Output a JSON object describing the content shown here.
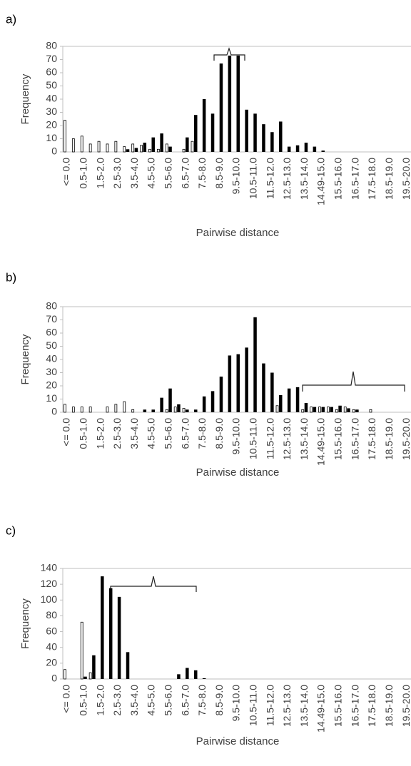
{
  "chart_data": [
    {
      "type": "bar",
      "panel_label": "a)",
      "y_label": "Frequency",
      "x_label": "Pairwise distance",
      "categories": [
        "<= 0.0",
        null,
        "0.5-1.0",
        null,
        "1.5-2.0",
        null,
        "2.5-3.0",
        null,
        "3.5-4.0",
        null,
        "4.5-5.0",
        null,
        "5.5-6.0",
        null,
        "6.5-7.0",
        null,
        "7.5-8.0",
        null,
        "8.5-9.0",
        null,
        "9.5-10.0",
        null,
        "10.5-11.0",
        null,
        "11.5-12.0",
        null,
        "12.5-13.0",
        null,
        "13.5-14.0",
        null,
        "14.49-15.0",
        null,
        "15.5-16.0",
        null,
        "16.5-17.0",
        null,
        "17.5-18.0",
        null,
        "18.5-19.0",
        null,
        "19.5-20.0"
      ],
      "series": [
        {
          "color": "#ffffff",
          "values": [
            24,
            10,
            12,
            6,
            8,
            6,
            8,
            4,
            6,
            5,
            2,
            2,
            6,
            0,
            2,
            8,
            0,
            0,
            0,
            0,
            0,
            0,
            0,
            0,
            0,
            0,
            0,
            0,
            0,
            0,
            0,
            0,
            0,
            0,
            0,
            0,
            0,
            0,
            0,
            0,
            0
          ]
        },
        {
          "color": "#000000",
          "values": [
            0,
            0,
            0,
            0,
            0,
            0,
            0,
            2,
            3,
            7,
            11,
            14,
            4,
            0,
            11,
            28,
            40,
            29,
            67,
            73,
            73,
            32,
            29,
            21,
            15,
            23,
            4,
            5,
            7,
            4,
            1,
            0,
            0,
            0,
            0,
            0,
            0,
            0,
            0,
            0,
            0
          ]
        }
      ],
      "ylim": [
        0,
        80
      ],
      "yticks": [
        0,
        10,
        20,
        30,
        40,
        50,
        60,
        70,
        80
      ],
      "grid": false
    },
    {
      "type": "bar",
      "panel_label": "b)",
      "y_label": "Frequency",
      "x_label": "Pairwise distance",
      "categories": [
        "<= 0.0",
        null,
        "0.5-1.0",
        null,
        "1.5-2.0",
        null,
        "2.5-3.0",
        null,
        "3.5-4.0",
        null,
        "4.5-5.0",
        null,
        "5.5-6.0",
        null,
        "6.5-7.0",
        null,
        "7.5-8.0",
        null,
        "8.5-9.0",
        null,
        "9.5-10.0",
        null,
        "10.5-11.0",
        null,
        "11.5-12.0",
        null,
        "12.5-13.0",
        null,
        "13.5-14.0",
        null,
        "14.49-15.0",
        null,
        "15.5-16.0",
        null,
        "16.5-17.0",
        null,
        "17.5-18.0",
        null,
        "18.5-19.0",
        null,
        "19.5-20.0"
      ],
      "series": [
        {
          "color": "#ffffff",
          "values": [
            6,
            4,
            4,
            4,
            0,
            4,
            6,
            8,
            2,
            0,
            0,
            0,
            2,
            4,
            3,
            0,
            0,
            0,
            0,
            0,
            0,
            0,
            0,
            0,
            0,
            5,
            0,
            0,
            2,
            4,
            4,
            4,
            2,
            4,
            2,
            0,
            2,
            0,
            0,
            0,
            0
          ]
        },
        {
          "color": "#000000",
          "values": [
            0,
            0,
            0,
            0,
            0,
            0,
            0,
            0,
            0,
            2,
            2,
            11,
            18,
            6,
            2,
            2,
            12,
            16,
            27,
            43,
            44,
            49,
            72,
            37,
            30,
            13,
            18,
            19,
            7,
            4,
            4,
            4,
            5,
            3,
            2,
            0,
            0,
            0,
            0,
            0,
            0
          ]
        }
      ],
      "ylim": [
        0,
        80
      ],
      "yticks": [
        0,
        10,
        20,
        30,
        40,
        50,
        60,
        70,
        80
      ],
      "grid": false
    },
    {
      "type": "bar",
      "panel_label": "c)",
      "y_label": "Frequency",
      "x_label": "Pairwise distance",
      "categories": [
        "<= 0.0",
        null,
        "0.5-1.0",
        null,
        "1.5-2.0",
        null,
        "2.5-3.0",
        null,
        "3.5-4.0",
        null,
        "4.5-5.0",
        null,
        "5.5-6.0",
        null,
        "6.5-7.0",
        null,
        "7.5-8.0",
        null,
        "8.5-9.0",
        null,
        "9.5-10.0",
        null,
        "10.5-11.0",
        null,
        "11.5-12.0",
        null,
        "12.5-13.0",
        null,
        "13.5-14.0",
        null,
        "14.49-15.0",
        null,
        "15.5-16.0",
        null,
        "16.5-17.0",
        null,
        "17.5-18.0",
        null,
        "18.5-19.0",
        null,
        "19.5-20.0"
      ],
      "series": [
        {
          "color": "#ffffff",
          "values": [
            12,
            0,
            72,
            8,
            0,
            0,
            0,
            0,
            0,
            0,
            0,
            0,
            0,
            0,
            0,
            0,
            0,
            0,
            0,
            0,
            0,
            0,
            0,
            0,
            0,
            0,
            0,
            0,
            0,
            0,
            0,
            0,
            0,
            0,
            0,
            0,
            0,
            0,
            0,
            0,
            0
          ]
        },
        {
          "color": "#000000",
          "values": [
            0,
            0,
            3,
            30,
            130,
            115,
            104,
            34,
            0,
            0,
            0,
            0,
            0,
            6,
            14,
            11,
            1,
            0,
            0,
            0,
            0,
            0,
            0,
            0,
            0,
            0,
            0,
            0,
            0,
            0,
            0,
            0,
            0,
            0,
            0,
            0,
            0,
            0,
            0,
            0,
            0
          ]
        }
      ],
      "ylim": [
        0,
        140
      ],
      "yticks": [
        0,
        20,
        40,
        60,
        80,
        100,
        120,
        140
      ],
      "grid": false
    }
  ]
}
